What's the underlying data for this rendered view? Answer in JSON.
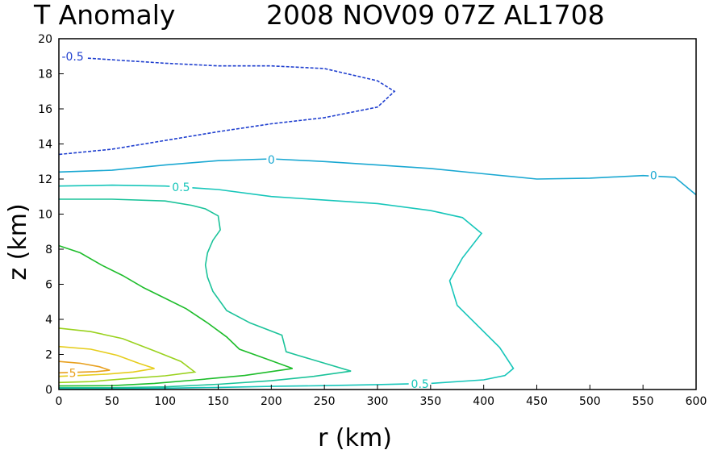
{
  "chart_data": {
    "type": "contour",
    "title_left": "T Anomaly",
    "title_right": "2008 NOV09 07Z AL1708",
    "xlabel": "r (km)",
    "ylabel": "z (km)",
    "xlim": [
      0,
      600
    ],
    "ylim": [
      0,
      20
    ],
    "xticks": [
      0,
      50,
      100,
      150,
      200,
      250,
      300,
      350,
      400,
      450,
      500,
      550,
      600
    ],
    "yticks": [
      0,
      2,
      4,
      6,
      8,
      10,
      12,
      14,
      16,
      18,
      20
    ],
    "grid": false,
    "contours": [
      {
        "level": -0.5,
        "label": "-0.5",
        "color": "#1f3fcf",
        "dashed": true,
        "points": [
          [
            0,
            19
          ],
          [
            50,
            18.8
          ],
          [
            100,
            18.6
          ],
          [
            150,
            18.45
          ],
          [
            200,
            18.45
          ],
          [
            250,
            18.3
          ],
          [
            300,
            17.6
          ],
          [
            316,
            17
          ],
          [
            300,
            16.1
          ],
          [
            250,
            15.5
          ],
          [
            200,
            15.15
          ],
          [
            150,
            14.7
          ],
          [
            100,
            14.2
          ],
          [
            50,
            13.7
          ],
          [
            0,
            13.4
          ]
        ],
        "label_at": [
          13,
          19
        ]
      },
      {
        "level": 0,
        "label": "0",
        "color": "#1aa8d2",
        "dashed": false,
        "points": [
          [
            0,
            12.4
          ],
          [
            50,
            12.5
          ],
          [
            100,
            12.8
          ],
          [
            150,
            13.05
          ],
          [
            200,
            13.15
          ],
          [
            250,
            13.0
          ],
          [
            300,
            12.8
          ],
          [
            350,
            12.6
          ],
          [
            400,
            12.3
          ],
          [
            450,
            12.0
          ],
          [
            500,
            12.05
          ],
          [
            550,
            12.2
          ],
          [
            580,
            12.1
          ],
          [
            600,
            11.1
          ]
        ],
        "label_at": [
          200,
          13.1
        ],
        "label2_at": [
          560,
          12.2
        ]
      },
      {
        "level": 0.5,
        "label": "0.5",
        "color": "#17c6ba",
        "dashed": false,
        "points": [
          [
            0,
            11.6
          ],
          [
            50,
            11.65
          ],
          [
            100,
            11.6
          ],
          [
            150,
            11.4
          ],
          [
            200,
            11.0
          ],
          [
            250,
            10.8
          ],
          [
            300,
            10.6
          ],
          [
            350,
            10.2
          ],
          [
            380,
            9.8
          ],
          [
            398,
            8.9
          ],
          [
            380,
            7.5
          ],
          [
            368,
            6.2
          ],
          [
            375,
            4.8
          ],
          [
            395,
            3.6
          ],
          [
            415,
            2.4
          ],
          [
            428,
            1.2
          ],
          [
            420,
            0.8
          ],
          [
            400,
            0.55
          ],
          [
            350,
            0.35
          ],
          [
            300,
            0.28
          ],
          [
            250,
            0.22
          ],
          [
            200,
            0.18
          ],
          [
            150,
            0.12
          ],
          [
            100,
            0.08
          ],
          [
            50,
            0.05
          ],
          [
            0,
            0.05
          ]
        ],
        "label_at": [
          115,
          11.55
        ],
        "label2_at": [
          340,
          0.32
        ]
      },
      {
        "level": 1,
        "label": "",
        "color": "#1bc39a",
        "dashed": false,
        "points": [
          [
            0,
            10.85
          ],
          [
            50,
            10.85
          ],
          [
            100,
            10.75
          ],
          [
            125,
            10.5
          ],
          [
            138,
            10.3
          ],
          [
            150,
            9.9
          ],
          [
            152,
            9.1
          ],
          [
            145,
            8.5
          ],
          [
            140,
            7.8
          ],
          [
            138,
            7.1
          ],
          [
            140,
            6.4
          ],
          [
            145,
            5.6
          ],
          [
            158,
            4.5
          ],
          [
            180,
            3.8
          ],
          [
            210,
            3.1
          ],
          [
            214,
            2.15
          ],
          [
            225,
            1.95
          ],
          [
            250,
            1.5
          ],
          [
            275,
            1.05
          ],
          [
            240,
            0.75
          ],
          [
            200,
            0.5
          ],
          [
            150,
            0.3
          ],
          [
            100,
            0.15
          ],
          [
            50,
            0.1
          ],
          [
            0,
            0.1
          ]
        ]
      },
      {
        "level": 2,
        "label": "",
        "color": "#1ebd2b",
        "dashed": false,
        "points": [
          [
            0,
            8.2
          ],
          [
            20,
            7.8
          ],
          [
            40,
            7.1
          ],
          [
            60,
            6.5
          ],
          [
            80,
            5.8
          ],
          [
            100,
            5.2
          ],
          [
            120,
            4.6
          ],
          [
            140,
            3.8
          ],
          [
            158,
            3.0
          ],
          [
            170,
            2.3
          ],
          [
            195,
            1.75
          ],
          [
            220,
            1.2
          ],
          [
            175,
            0.8
          ],
          [
            130,
            0.55
          ],
          [
            90,
            0.35
          ],
          [
            50,
            0.22
          ],
          [
            0,
            0.2
          ]
        ]
      },
      {
        "level": 3,
        "label": "",
        "color": "#9ad21e",
        "dashed": false,
        "points": [
          [
            0,
            3.5
          ],
          [
            30,
            3.3
          ],
          [
            60,
            2.9
          ],
          [
            90,
            2.2
          ],
          [
            115,
            1.6
          ],
          [
            128,
            1.0
          ],
          [
            100,
            0.78
          ],
          [
            60,
            0.6
          ],
          [
            30,
            0.45
          ],
          [
            0,
            0.4
          ]
        ]
      },
      {
        "level": 4,
        "label": "",
        "color": "#e6cd1c",
        "dashed": false,
        "points": [
          [
            0,
            2.45
          ],
          [
            30,
            2.3
          ],
          [
            55,
            1.95
          ],
          [
            75,
            1.5
          ],
          [
            90,
            1.2
          ],
          [
            70,
            1.0
          ],
          [
            45,
            0.88
          ],
          [
            20,
            0.8
          ],
          [
            0,
            0.75
          ]
        ]
      },
      {
        "level": 5,
        "label": "5",
        "color": "#e8a01e",
        "dashed": false,
        "points": [
          [
            0,
            1.6
          ],
          [
            20,
            1.5
          ],
          [
            38,
            1.3
          ],
          [
            48,
            1.1
          ],
          [
            35,
            1.02
          ],
          [
            15,
            0.98
          ],
          [
            0,
            0.95
          ]
        ],
        "label_at": [
          13,
          0.95
        ]
      }
    ]
  }
}
